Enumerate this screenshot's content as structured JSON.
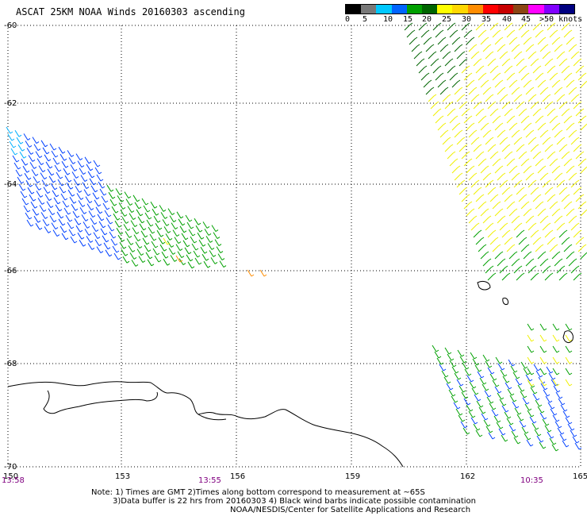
{
  "title": "ASCAT 25KM NOAA Winds 20160303 ascending",
  "legend": {
    "labels": [
      "0",
      "5",
      "10",
      "15",
      "20",
      "25",
      "30",
      "35",
      "40",
      "45",
      ">50 knots"
    ],
    "colors": [
      "#000000",
      "#787878",
      "#00c8ff",
      "#0064ff",
      "#00a000",
      "#006400",
      "#ffff00",
      "#ffd700",
      "#ff8c00",
      "#ff0000",
      "#c80000",
      "#8b4513",
      "#ff00ff",
      "#8000ff",
      "#000080"
    ]
  },
  "axes": {
    "lat_labels": [
      "-60",
      "-62",
      "-64",
      "-66",
      "-68",
      "-70"
    ],
    "lon_labels": [
      "150",
      "153",
      "156",
      "159",
      "162",
      "165"
    ]
  },
  "times": {
    "left": "13:58",
    "middle": "13:55",
    "right": "10:35"
  },
  "notes": {
    "line1": "Note: 1) Times are GMT 2)Times along bottom correspond to measurement at ~65S",
    "line2": "3)Data buffer is 22 hrs from 20160303 4) Black wind barbs indicate possible contamination",
    "line3": "NOAA/NESDIS/Center for Satellite Applications and Research"
  },
  "map_colors": {
    "blue": "#0040ff",
    "cyan": "#00b0ff",
    "green": "#00a000",
    "dark_green": "#006400",
    "yellow": "#f0f000",
    "orange": "#ff8c00",
    "coast": "#000000",
    "grid": "#000000"
  }
}
